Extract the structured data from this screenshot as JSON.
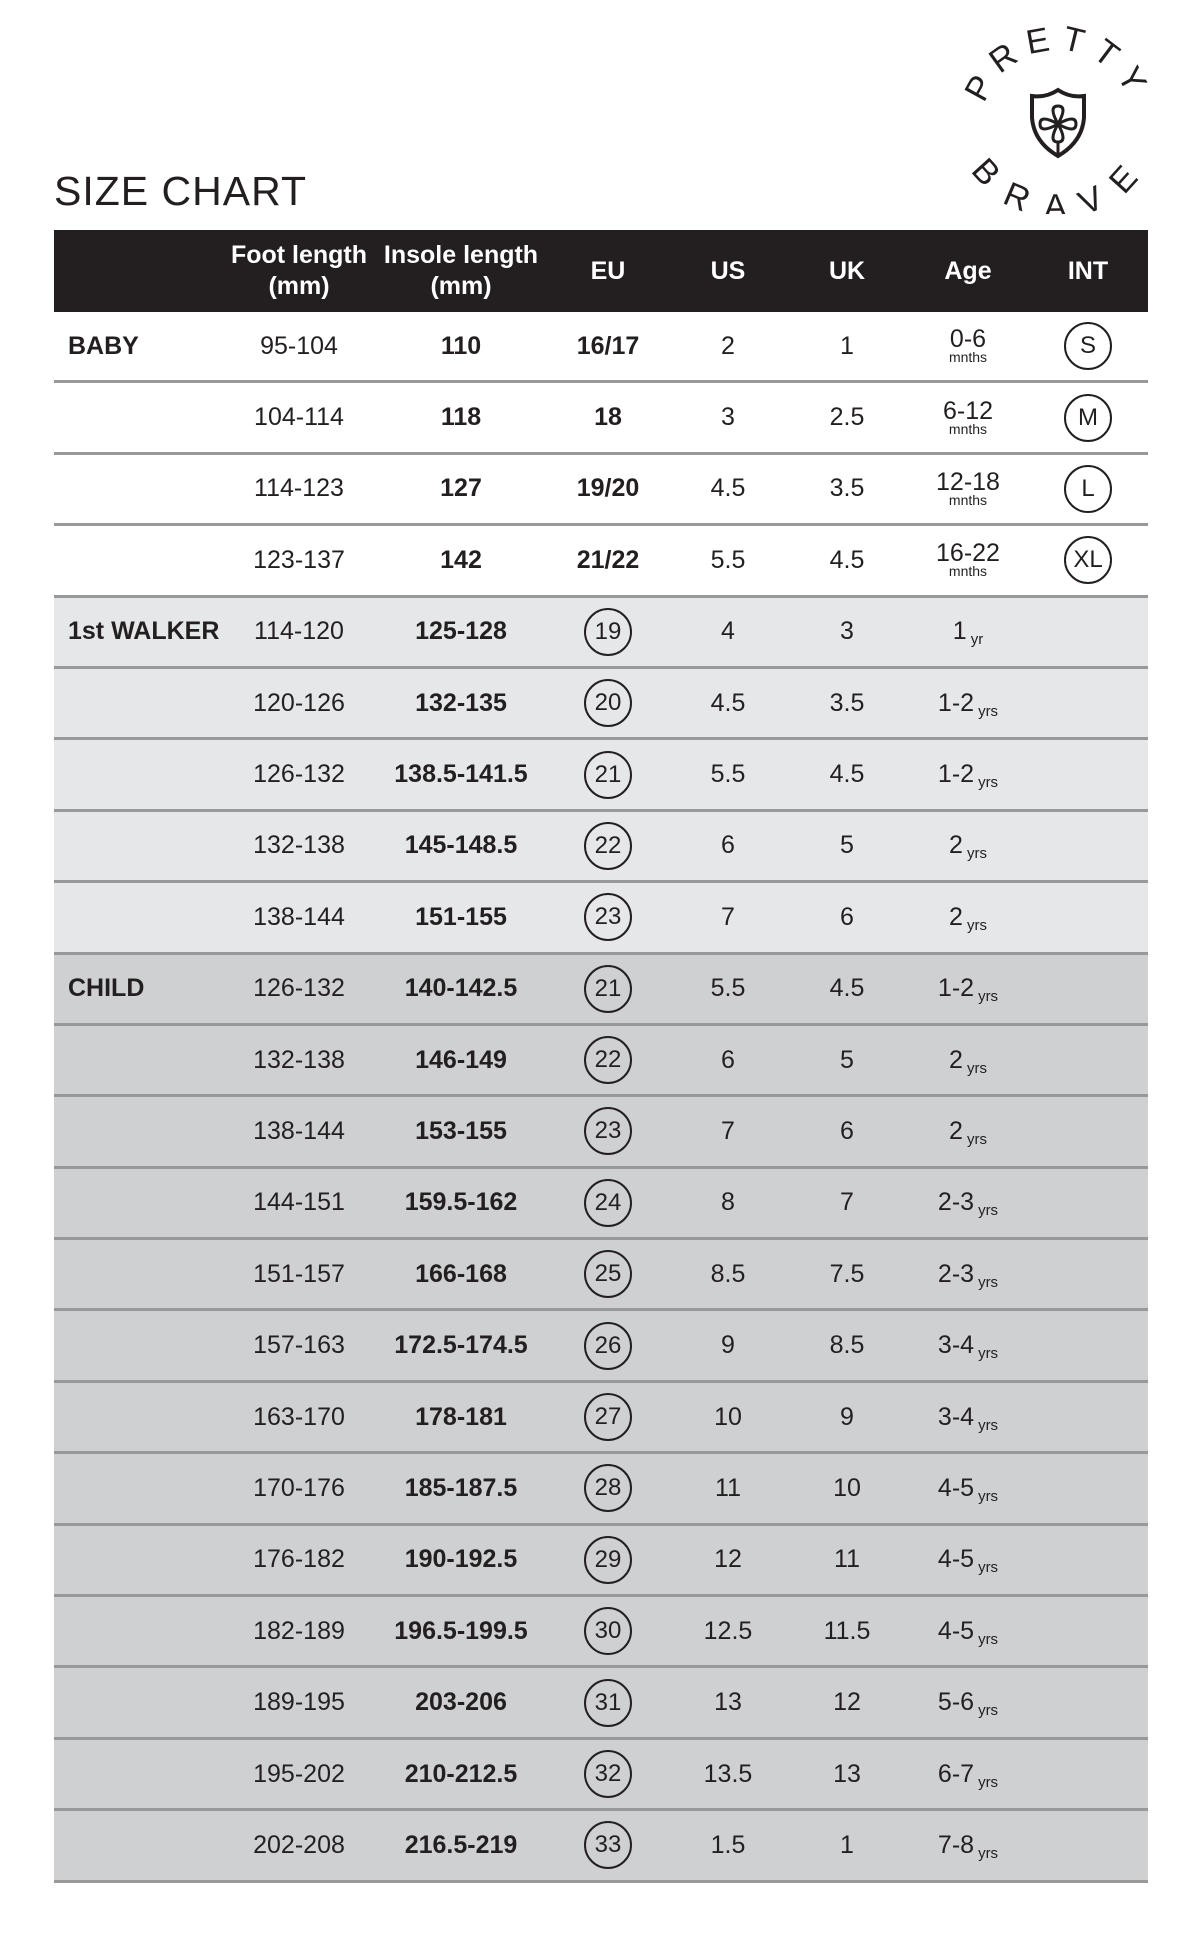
{
  "title": "SIZE CHART",
  "logo": {
    "text_top": "PRETTY",
    "text_bottom": "BRAVE",
    "icon": "shield-flower-icon"
  },
  "colors": {
    "header_bg": "#231f20",
    "baby_bg": "#ffffff",
    "walker_bg": "#e6e7e9",
    "child_bg": "#cfd0d2"
  },
  "headers": [
    "",
    "Foot length (mm)",
    "Insole length (mm)",
    "EU",
    "US",
    "UK",
    "Age",
    "INT"
  ],
  "rows": [
    {
      "group": "BABY",
      "section": "baby",
      "foot": "95-104",
      "insole": "110",
      "eu": "16/17",
      "eu_circled": false,
      "us": "2",
      "uk": "1",
      "age": "0-6",
      "age_unit": "mnths",
      "int": "S"
    },
    {
      "group": "",
      "section": "baby",
      "foot": "104-114",
      "insole": "118",
      "eu": "18",
      "eu_circled": false,
      "us": "3",
      "uk": "2.5",
      "age": "6-12",
      "age_unit": "mnths",
      "int": "M"
    },
    {
      "group": "",
      "section": "baby",
      "foot": "114-123",
      "insole": "127",
      "eu": "19/20",
      "eu_circled": false,
      "us": "4.5",
      "uk": "3.5",
      "age": "12-18",
      "age_unit": "mnths",
      "int": "L"
    },
    {
      "group": "",
      "section": "baby",
      "foot": "123-137",
      "insole": "142",
      "eu": "21/22",
      "eu_circled": false,
      "us": "5.5",
      "uk": "4.5",
      "age": "16-22",
      "age_unit": "mnths",
      "int": "XL"
    },
    {
      "group": "1st WALKER",
      "section": "walker",
      "foot": "114-120",
      "insole": "125-128",
      "eu": "19",
      "eu_circled": true,
      "us": "4",
      "uk": "3",
      "age": "1",
      "age_unit": "yr",
      "int": ""
    },
    {
      "group": "",
      "section": "walker",
      "foot": "120-126",
      "insole": "132-135",
      "eu": "20",
      "eu_circled": true,
      "us": "4.5",
      "uk": "3.5",
      "age": "1-2",
      "age_unit": "yrs",
      "int": ""
    },
    {
      "group": "",
      "section": "walker",
      "foot": "126-132",
      "insole": "138.5-141.5",
      "eu": "21",
      "eu_circled": true,
      "us": "5.5",
      "uk": "4.5",
      "age": "1-2",
      "age_unit": "yrs",
      "int": ""
    },
    {
      "group": "",
      "section": "walker",
      "foot": "132-138",
      "insole": "145-148.5",
      "eu": "22",
      "eu_circled": true,
      "us": "6",
      "uk": "5",
      "age": "2",
      "age_unit": "yrs",
      "int": ""
    },
    {
      "group": "",
      "section": "walker",
      "foot": "138-144",
      "insole": "151-155",
      "eu": "23",
      "eu_circled": true,
      "us": "7",
      "uk": "6",
      "age": "2",
      "age_unit": "yrs",
      "int": ""
    },
    {
      "group": "CHILD",
      "section": "child",
      "foot": "126-132",
      "insole": "140-142.5",
      "eu": "21",
      "eu_circled": true,
      "us": "5.5",
      "uk": "4.5",
      "age": "1-2",
      "age_unit": "yrs",
      "int": ""
    },
    {
      "group": "",
      "section": "child",
      "foot": "132-138",
      "insole": "146-149",
      "eu": "22",
      "eu_circled": true,
      "us": "6",
      "uk": "5",
      "age": "2",
      "age_unit": "yrs",
      "int": ""
    },
    {
      "group": "",
      "section": "child",
      "foot": "138-144",
      "insole": "153-155",
      "eu": "23",
      "eu_circled": true,
      "us": "7",
      "uk": "6",
      "age": "2",
      "age_unit": "yrs",
      "int": ""
    },
    {
      "group": "",
      "section": "child",
      "foot": "144-151",
      "insole": "159.5-162",
      "eu": "24",
      "eu_circled": true,
      "us": "8",
      "uk": "7",
      "age": "2-3",
      "age_unit": "yrs",
      "int": ""
    },
    {
      "group": "",
      "section": "child",
      "foot": "151-157",
      "insole": "166-168",
      "eu": "25",
      "eu_circled": true,
      "us": "8.5",
      "uk": "7.5",
      "age": "2-3",
      "age_unit": "yrs",
      "int": ""
    },
    {
      "group": "",
      "section": "child",
      "foot": "157-163",
      "insole": "172.5-174.5",
      "eu": "26",
      "eu_circled": true,
      "us": "9",
      "uk": "8.5",
      "age": "3-4",
      "age_unit": "yrs",
      "int": ""
    },
    {
      "group": "",
      "section": "child",
      "foot": "163-170",
      "insole": "178-181",
      "eu": "27",
      "eu_circled": true,
      "us": "10",
      "uk": "9",
      "age": "3-4",
      "age_unit": "yrs",
      "int": ""
    },
    {
      "group": "",
      "section": "child",
      "foot": "170-176",
      "insole": "185-187.5",
      "eu": "28",
      "eu_circled": true,
      "us": "11",
      "uk": "10",
      "age": "4-5",
      "age_unit": "yrs",
      "int": ""
    },
    {
      "group": "",
      "section": "child",
      "foot": "176-182",
      "insole": "190-192.5",
      "eu": "29",
      "eu_circled": true,
      "us": "12",
      "uk": "11",
      "age": "4-5",
      "age_unit": "yrs",
      "int": ""
    },
    {
      "group": "",
      "section": "child",
      "foot": "182-189",
      "insole": "196.5-199.5",
      "eu": "30",
      "eu_circled": true,
      "us": "12.5",
      "uk": "11.5",
      "age": "4-5",
      "age_unit": "yrs",
      "int": ""
    },
    {
      "group": "",
      "section": "child",
      "foot": "189-195",
      "insole": "203-206",
      "eu": "31",
      "eu_circled": true,
      "us": "13",
      "uk": "12",
      "age": "5-6",
      "age_unit": "yrs",
      "int": ""
    },
    {
      "group": "",
      "section": "child",
      "foot": "195-202",
      "insole": "210-212.5",
      "eu": "32",
      "eu_circled": true,
      "us": "13.5",
      "uk": "13",
      "age": "6-7",
      "age_unit": "yrs",
      "int": ""
    },
    {
      "group": "",
      "section": "child",
      "foot": "202-208",
      "insole": "216.5-219",
      "eu": "33",
      "eu_circled": true,
      "us": "1.5",
      "uk": "1",
      "age": "7-8",
      "age_unit": "yrs",
      "int": ""
    }
  ]
}
